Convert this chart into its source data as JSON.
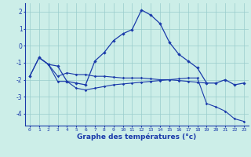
{
  "xlabel": "Graphe des températures (°c)",
  "bg_color": "#cceee8",
  "line_color": "#1a3aaa",
  "grid_color": "#99cccc",
  "series1_x": [
    0,
    1,
    2,
    3,
    4,
    5,
    6,
    7,
    8,
    9,
    10,
    11,
    12,
    13,
    14,
    15,
    16,
    17,
    18,
    19,
    20,
    21,
    22,
    23
  ],
  "series1_y": [
    -1.8,
    -0.7,
    -1.1,
    -1.2,
    -2.1,
    -2.2,
    -2.3,
    -0.9,
    -0.4,
    0.3,
    0.7,
    0.95,
    2.1,
    1.8,
    1.3,
    0.2,
    -0.5,
    -0.9,
    -1.3,
    -2.2,
    -2.2,
    -2.0,
    -2.3,
    -2.2
  ],
  "series2_x": [
    1,
    2,
    3,
    4,
    5,
    6,
    7,
    8,
    9,
    10,
    11,
    12,
    13,
    14,
    15,
    16,
    17,
    18,
    19
  ],
  "series2_y": [
    -0.7,
    -1.1,
    -1.8,
    -1.6,
    -1.7,
    -1.7,
    -1.8,
    -1.8,
    -1.85,
    -1.9,
    -1.9,
    -1.9,
    -1.95,
    -2.0,
    -2.0,
    -2.05,
    -2.1,
    -2.15,
    -2.2
  ],
  "series3_x": [
    0,
    1,
    2,
    3,
    4,
    5,
    6,
    7,
    8,
    9,
    10,
    11,
    12,
    13,
    14,
    15,
    16,
    17,
    18,
    19,
    20,
    21,
    22,
    23
  ],
  "series3_y": [
    -1.8,
    -0.7,
    -1.1,
    -2.1,
    -2.1,
    -2.5,
    -2.6,
    -2.5,
    -2.4,
    -2.3,
    -2.25,
    -2.2,
    -2.15,
    -2.1,
    -2.05,
    -2.0,
    -1.95,
    -1.9,
    -1.9,
    -3.4,
    -3.6,
    -3.85,
    -4.3,
    -4.45
  ],
  "ylim": [
    -4.7,
    2.5
  ],
  "yticks": [
    -4,
    -3,
    -2,
    -1,
    0,
    1,
    2
  ],
  "xticks": [
    0,
    1,
    2,
    3,
    4,
    5,
    6,
    7,
    8,
    9,
    10,
    11,
    12,
    13,
    14,
    15,
    16,
    17,
    18,
    19,
    20,
    21,
    22,
    23
  ],
  "xlim": [
    -0.5,
    23.5
  ]
}
